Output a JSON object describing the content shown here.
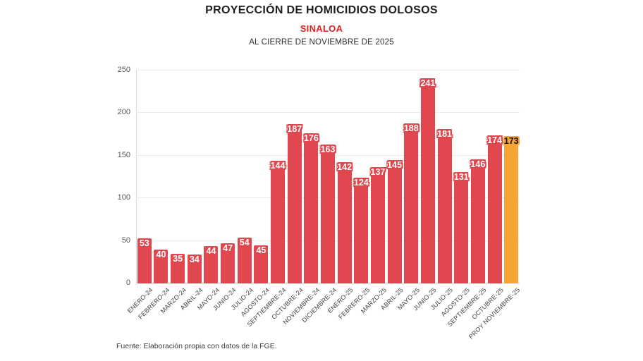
{
  "header": {
    "title": "PROYECCIÓN DE HOMICIDIOS DOLOSOS",
    "subtitle": "SINALOA",
    "caption": "AL CIERRE DE NOVIEMBRE DE 2025"
  },
  "footer": {
    "source": "Fuente: Elaboración propia con datos de la FGE."
  },
  "colors": {
    "bar": "#E0474E",
    "highlight_bar": "#F6A433",
    "subtitle_red": "#E2201E",
    "grid": "#ededed",
    "axis": "#d9d9d9"
  },
  "chart_data": {
    "type": "bar",
    "title": "PROYECCIÓN DE HOMICIDIOS DOLOSOS",
    "subtitle": "SINALOA",
    "caption": "AL CIERRE DE NOVIEMBRE DE 2025",
    "xlabel": "",
    "ylabel": "",
    "ylim": [
      0,
      250
    ],
    "yticks": [
      0,
      50,
      100,
      150,
      200,
      250
    ],
    "grid": true,
    "legend": false,
    "categories": [
      "ENERO-24",
      "FEBRERO-24",
      "MARZO-24",
      "ABRIL-24",
      "MAYO-24",
      "JUNIO-24",
      "JULIO-24",
      "AGOSTO-24",
      "SEPTIEMBRE-24",
      "OCTUBRE-24",
      "NOVIEMBRE-24",
      "DICIEMBRE-24",
      "ENERO-25",
      "FEBRERO-25",
      "MARZO-25",
      "ABRIL-25",
      "MAYO-25",
      "JUNIO-25",
      "JULIO-25",
      "AGOSTO-25",
      "SEPTIEMBRE-25",
      "OCTUBRE-25",
      "PROY NOVIEMBRE-25"
    ],
    "values": [
      53,
      40,
      35,
      34,
      44,
      47,
      54,
      45,
      144,
      187,
      176,
      163,
      142,
      124,
      137,
      145,
      188,
      241,
      181,
      131,
      146,
      174,
      173
    ],
    "highlight_index": 22
  }
}
